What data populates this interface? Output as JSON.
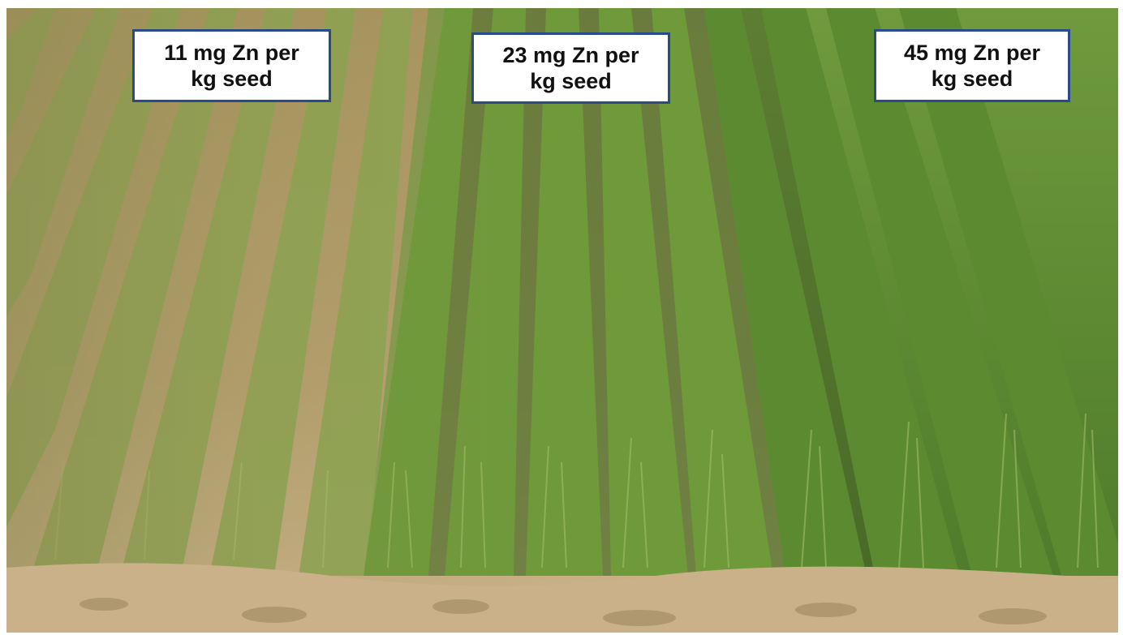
{
  "labels": [
    {
      "text": "11 mg Zn per\nkg seed"
    },
    {
      "text": "23 mg Zn per\nkg seed"
    },
    {
      "text": "45 mg Zn per\nkg seed"
    }
  ],
  "colors": {
    "label_border": "#2a4a8a",
    "label_background": "#ffffff",
    "soil": "#c7ae86",
    "crop_sparse": "#8fa556",
    "crop_dense": "#5d8a35"
  }
}
